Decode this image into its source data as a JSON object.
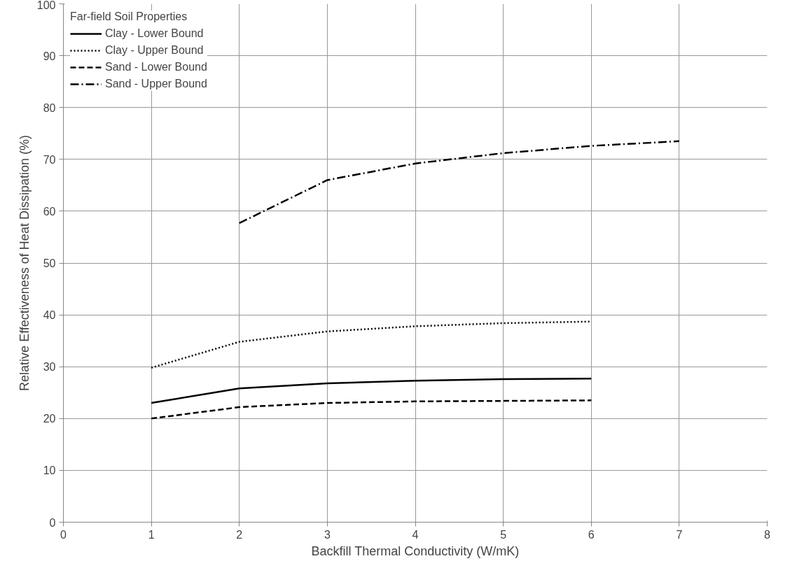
{
  "chart_data": {
    "type": "line",
    "xlabel": "Backfill Thermal Conductivity (W/mK)",
    "ylabel": "Relative Effectiveness of Heat Dissipation (%)",
    "legend_title": "Far-field Soil Properties",
    "legend": "top left",
    "grid": true,
    "marker": "none",
    "xlim": [
      0,
      8
    ],
    "xticks": [
      0,
      1,
      2,
      3,
      4,
      5,
      6,
      7,
      8
    ],
    "ylim": [
      0,
      100
    ],
    "yticks": [
      0,
      10,
      20,
      30,
      40,
      50,
      60,
      70,
      80,
      90,
      100
    ],
    "series": [
      {
        "name": "Clay - Lower Bound",
        "color": "#000000",
        "line_style": "solid",
        "x": [
          1,
          2,
          3,
          4,
          5,
          6
        ],
        "values": [
          23,
          25.8,
          26.8,
          27.3,
          27.6,
          27.7
        ]
      },
      {
        "name": "Clay - Upper Bound",
        "color": "#000000",
        "line_style": "dotted",
        "x": [
          1,
          2,
          3,
          4,
          5,
          6
        ],
        "values": [
          29.8,
          34.8,
          36.8,
          37.8,
          38.4,
          38.7
        ]
      },
      {
        "name": "Sand - Lower Bound",
        "color": "#000000",
        "line_style": "dashed",
        "x": [
          1,
          2,
          3,
          4,
          5,
          6
        ],
        "values": [
          20,
          22.2,
          23,
          23.3,
          23.4,
          23.5
        ]
      },
      {
        "name": "Sand - Upper Bound",
        "color": "#000000",
        "line_style": "dashdot",
        "x": [
          2,
          3,
          4,
          5,
          6,
          7
        ],
        "values": [
          57.7,
          66,
          69.2,
          71.2,
          72.6,
          73.5
        ]
      }
    ]
  }
}
